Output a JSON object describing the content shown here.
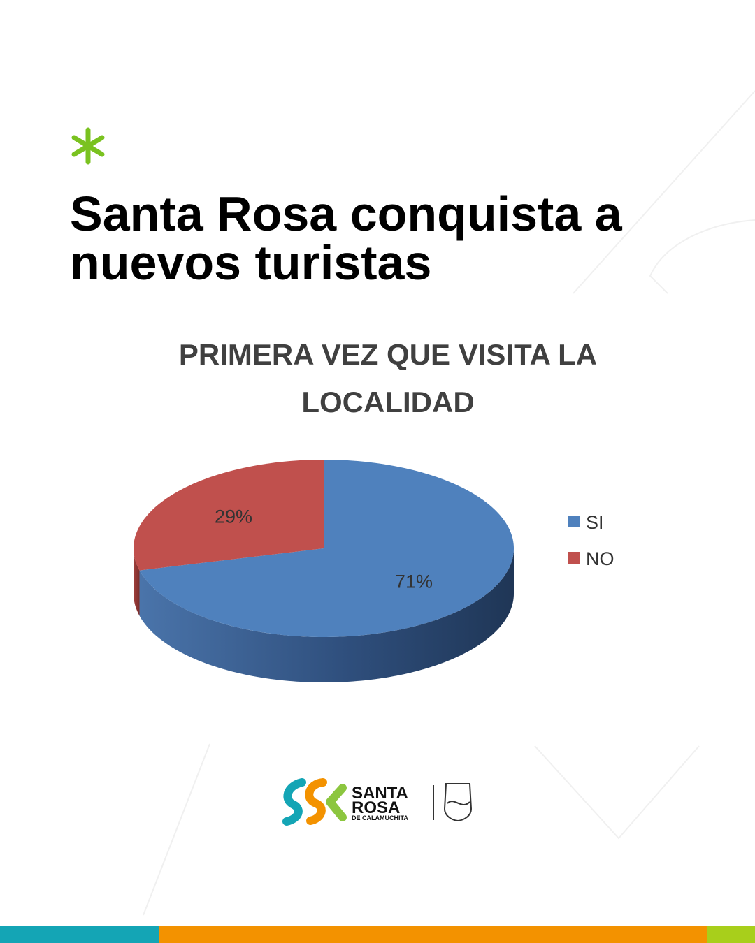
{
  "header": {
    "title_lines": [
      "Santa Rosa conquista a",
      "nuevos turistas"
    ]
  },
  "chart_data": {
    "type": "pie",
    "title_lines": [
      "PRIMERA VEZ QUE VISITA LA",
      "LOCALIDAD"
    ],
    "categories": [
      "SI",
      "NO"
    ],
    "values": [
      71,
      29
    ],
    "value_labels": [
      "71%",
      "29%"
    ],
    "colors": [
      "#4f81bd",
      "#c0504d"
    ],
    "legend": "right"
  },
  "footer": {
    "logo_lines": [
      "SANTA",
      "ROSA",
      "DE CALAMUCHITA"
    ]
  }
}
